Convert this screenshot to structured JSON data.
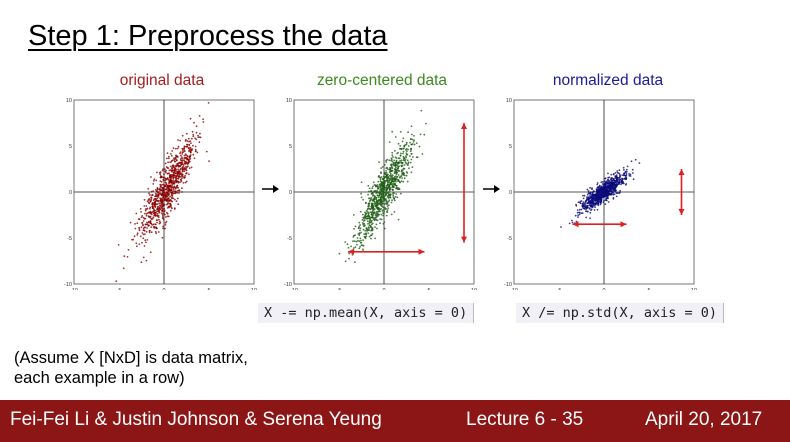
{
  "slide": {
    "title": "Step 1: Preprocess the data",
    "note_line1": "(Assume X [NxD] is data matrix,",
    "note_line2": "each example in a row)"
  },
  "plots": [
    {
      "title": "original data",
      "color": "#8b0000",
      "title_color": "#a81c1c"
    },
    {
      "title": "zero-centered data",
      "color": "#1e5c14",
      "title_color": "#3d8a1e"
    },
    {
      "title": "normalized data",
      "color": "#0b0b7a",
      "title_color": "#1a1a9a"
    }
  ],
  "axes": {
    "ticks_x": [
      "-10",
      "-5",
      "0",
      "5",
      "10"
    ],
    "ticks_y": [
      "10",
      "5",
      "0",
      "-5",
      "-10"
    ]
  },
  "code": {
    "mean": "X -= np.mean(X, axis = 0)",
    "std": "X /= np.std(X, axis = 0)"
  },
  "footer": {
    "authors": "Fei-Fei Li & Justin Johnson & Serena Yeung",
    "lecture": "Lecture 6 - 35",
    "date": "April 20, 2017"
  },
  "colors": {
    "footer_bg": "#8c1515",
    "arrow_red": "#e02020"
  }
}
